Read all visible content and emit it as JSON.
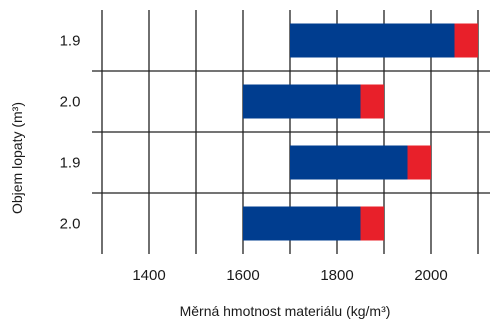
{
  "chart_data": {
    "type": "bar",
    "orientation": "horizontal",
    "stacked": true,
    "categories": [
      "1.9",
      "2.0",
      "1.9",
      "2.0"
    ],
    "series": [
      {
        "color": "#003d8f",
        "ranges": [
          [
            1700,
            2050
          ],
          [
            1600,
            1850
          ],
          [
            1700,
            1950
          ],
          [
            1600,
            1850
          ]
        ]
      },
      {
        "color": "#e8202a",
        "ranges": [
          [
            2050,
            2100
          ],
          [
            1850,
            1900
          ],
          [
            1950,
            2000
          ],
          [
            1850,
            1900
          ]
        ]
      }
    ],
    "xlabel": "Měrná hmotnost materiálu (kg/m³)",
    "ylabel": "Objem lopaty (m³)",
    "xlim": [
      1300,
      2100
    ],
    "xticks": [
      1400,
      1600,
      1800,
      2000
    ],
    "xtick_labels": [
      "1400",
      "1600",
      "1800",
      "2000"
    ],
    "grid": true
  }
}
